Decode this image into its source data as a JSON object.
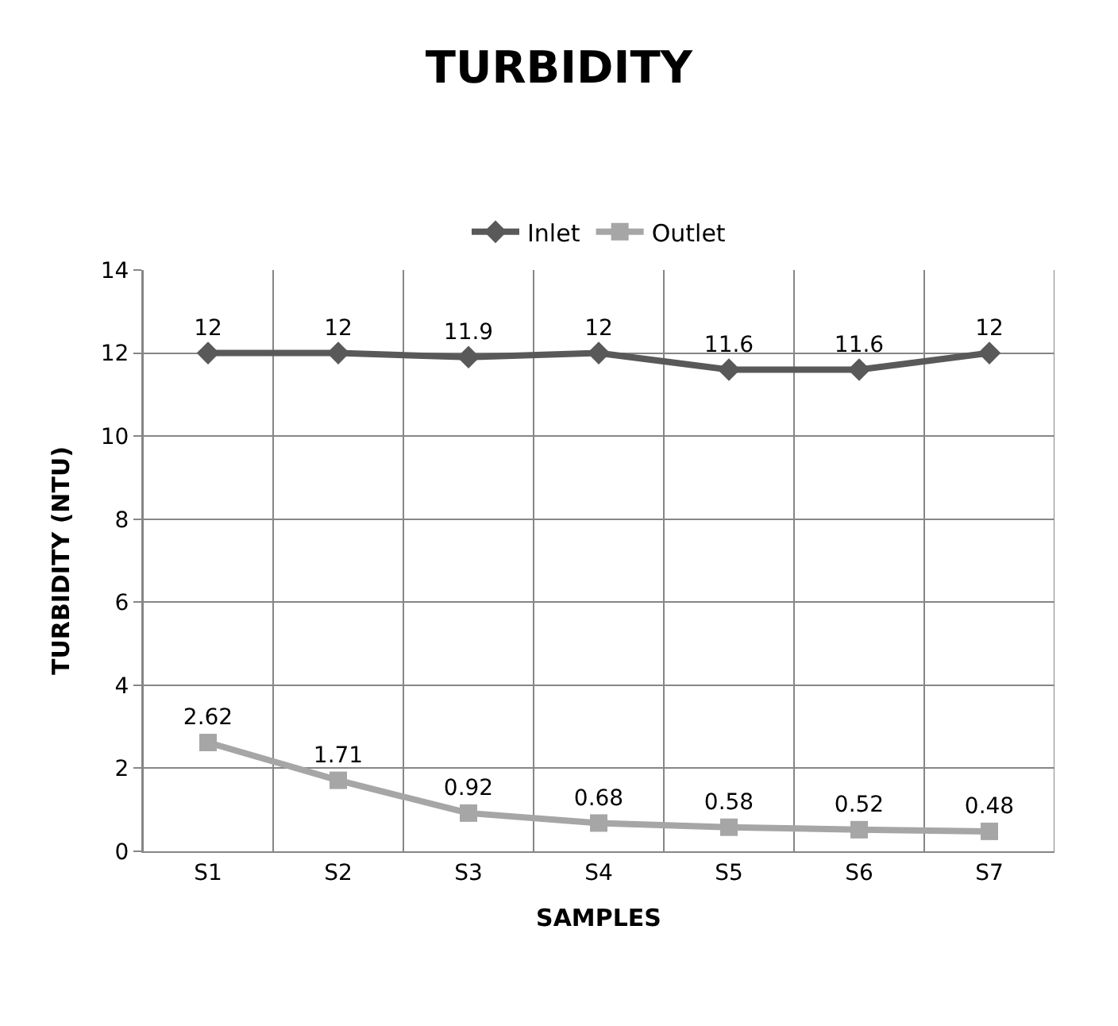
{
  "chart_data": {
    "type": "line",
    "title": "TURBIDITY",
    "xlabel": "SAMPLES",
    "ylabel": "TURBIDITY (NTU)",
    "categories": [
      "S1",
      "S2",
      "S3",
      "S4",
      "S5",
      "S6",
      "S7"
    ],
    "series": [
      {
        "name": "Inlet",
        "color": "#595959",
        "marker": "diamond",
        "values": [
          12,
          12,
          11.9,
          12,
          11.6,
          11.6,
          12
        ]
      },
      {
        "name": "Outlet",
        "color": "#a6a6a6",
        "marker": "square",
        "values": [
          2.62,
          1.71,
          0.92,
          0.68,
          0.58,
          0.52,
          0.48
        ]
      }
    ],
    "ylim": [
      0,
      14
    ],
    "yticks": [
      0,
      2,
      4,
      6,
      8,
      10,
      12,
      14
    ],
    "grid": true,
    "legend": "top",
    "data_labels": true,
    "line_style": "solid"
  }
}
